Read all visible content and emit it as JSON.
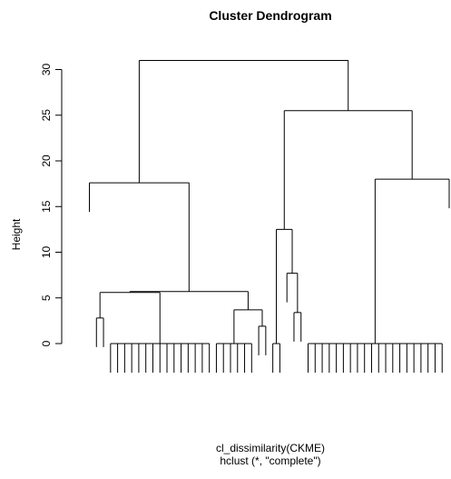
{
  "chart_data": {
    "type": "dendrogram",
    "title": "Cluster Dendrogram",
    "ylabel": "Height",
    "xlabel": "cl_dissimilarity(CKME)",
    "sub": "hclust (*, \"complete\")",
    "ylim": [
      0,
      32
    ],
    "yticks": [
      0,
      5,
      10,
      15,
      20,
      25,
      30
    ],
    "merges": [
      {
        "id": "A",
        "height": 2.8,
        "children": [
          "leaf",
          "leaf"
        ]
      },
      {
        "id": "B1",
        "height": 0,
        "children": [
          "leaf",
          "leaf",
          "leaf",
          "leaf",
          "leaf",
          "leaf",
          "leaf",
          "leaf",
          "leaf",
          "leaf",
          "leaf",
          "leaf",
          "leaf",
          "leaf",
          "leaf"
        ]
      },
      {
        "id": "B",
        "height": 5.6,
        "children": [
          "A",
          "B1"
        ]
      },
      {
        "id": "C1",
        "height": 0,
        "children": [
          "leaf",
          "leaf",
          "leaf",
          "leaf",
          "leaf",
          "leaf"
        ]
      },
      {
        "id": "C2",
        "height": 1.9,
        "children": [
          "leaf",
          "leaf"
        ]
      },
      {
        "id": "C",
        "height": 3.7,
        "children": [
          "C1",
          "C2"
        ]
      },
      {
        "id": "D",
        "height": 5.7,
        "children": [
          "B",
          "C"
        ]
      },
      {
        "id": "E",
        "height": 17.6,
        "children": [
          "leaf",
          "D"
        ]
      },
      {
        "id": "F1",
        "height": 0,
        "children": [
          "leaf",
          "leaf"
        ]
      },
      {
        "id": "F2",
        "height": 3.4,
        "children": [
          "leaf",
          "leaf"
        ]
      },
      {
        "id": "F3",
        "height": 7.7,
        "children": [
          "leaf",
          "F2"
        ]
      },
      {
        "id": "F",
        "height": 12.5,
        "children": [
          "F1",
          "F3"
        ]
      },
      {
        "id": "G1",
        "height": 0,
        "children": [
          "leaf",
          "leaf",
          "leaf",
          "leaf",
          "leaf",
          "leaf",
          "leaf",
          "leaf",
          "leaf",
          "leaf",
          "leaf",
          "leaf",
          "leaf",
          "leaf",
          "leaf",
          "leaf",
          "leaf",
          "leaf",
          "leaf",
          "leaf"
        ]
      },
      {
        "id": "G",
        "height": 18.0,
        "children": [
          "G1",
          "leaf"
        ]
      },
      {
        "id": "H",
        "height": 25.5,
        "children": [
          "F",
          "G"
        ]
      },
      {
        "id": "root",
        "height": 31.0,
        "children": [
          "E",
          "H"
        ]
      }
    ]
  }
}
